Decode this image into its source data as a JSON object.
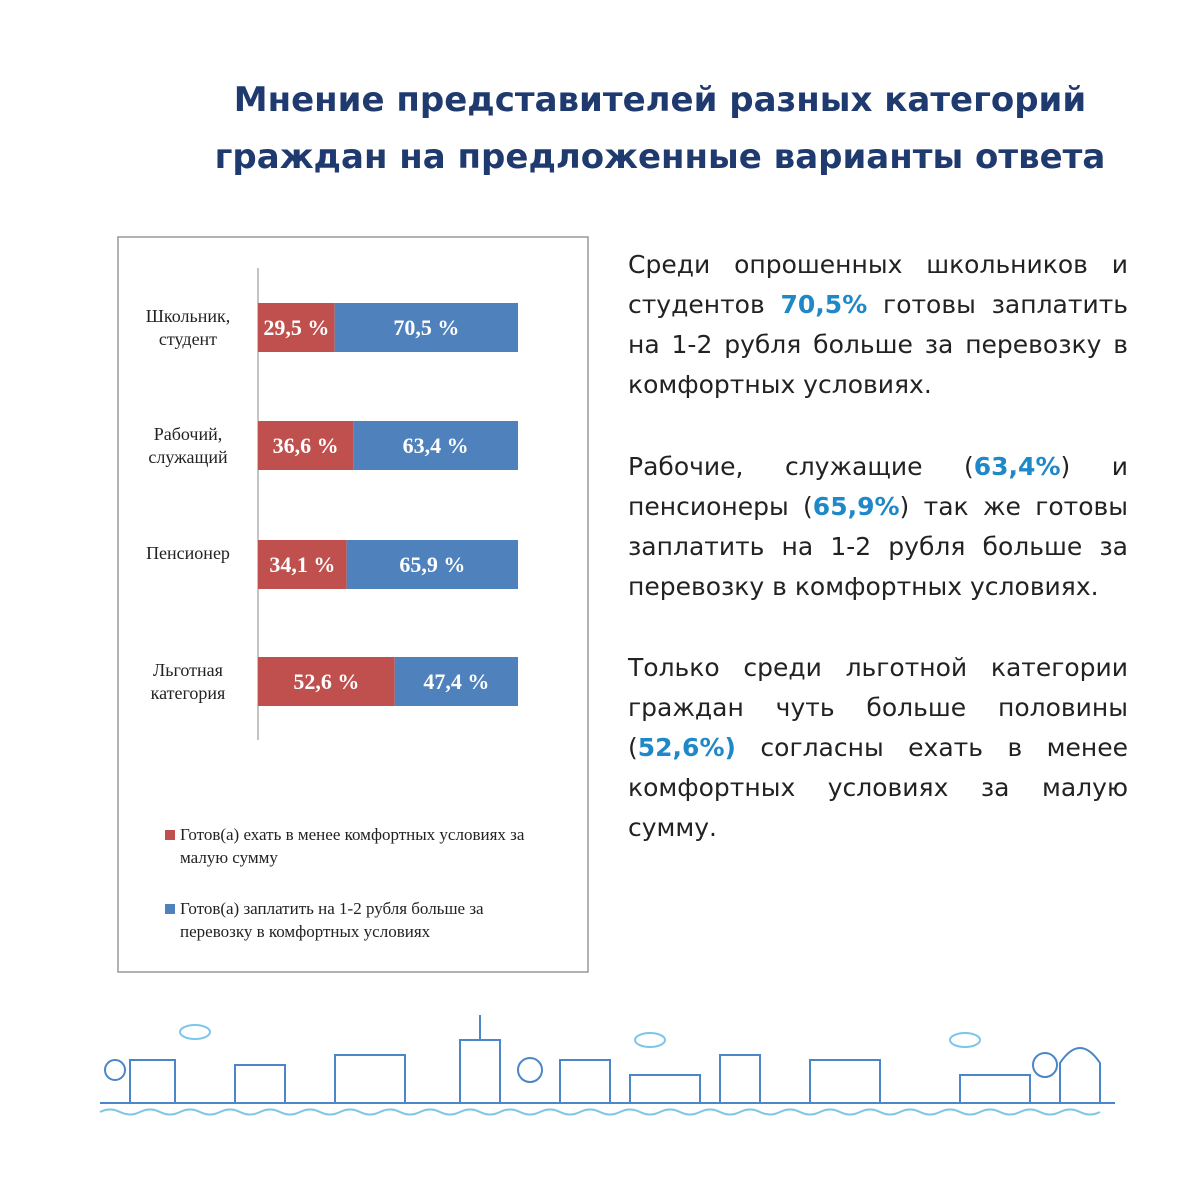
{
  "header": {
    "title_lines": [
      "Мнение представителей разных категорий",
      "граждан на предложенные варианты ответа"
    ]
  },
  "chart_data": {
    "type": "bar",
    "orientation": "horizontal",
    "stacked": true,
    "categories": [
      "Школьник, студент",
      "Рабочий, служащий",
      "Пенсионер",
      "Льготная категория"
    ],
    "series": [
      {
        "name": "Готов(а) ехать в менее комфортных условиях за малую сумму",
        "color": "#c0504d",
        "values": [
          29.5,
          36.6,
          34.1,
          52.6
        ],
        "value_labels": [
          "29,5 %",
          "36,6 %",
          "34,1 %",
          "52,6 %"
        ]
      },
      {
        "name": "Готов(а) заплатить на 1-2 рубля больше за перевозку в комфортных условиях",
        "color": "#4f81bd",
        "values": [
          70.5,
          63.4,
          65.9,
          47.4
        ],
        "value_labels": [
          "70,5 %",
          "63,4 %",
          "65,9 %",
          "47,4 %"
        ]
      }
    ],
    "xlim": [
      0,
      100
    ]
  },
  "text": {
    "paragraphs": [
      [
        "Среди опрошенных школьников и студентов ",
        "70,5%",
        " готовы заплатить на 1-2 рубля больше за перевозку в комфортных условиях."
      ],
      [
        "Рабочие, служащие (",
        "63,4%",
        ") и пенсионеры (",
        "65,9%",
        ") так же готовы заплатить на 1-2 рубля больше за перевозку в комфортных условиях."
      ],
      [
        "Только среди льготной категории граждан чуть больше половины (",
        "52,6%)",
        " согласны ехать в менее комфортных условиях за малую сумму."
      ]
    ]
  }
}
